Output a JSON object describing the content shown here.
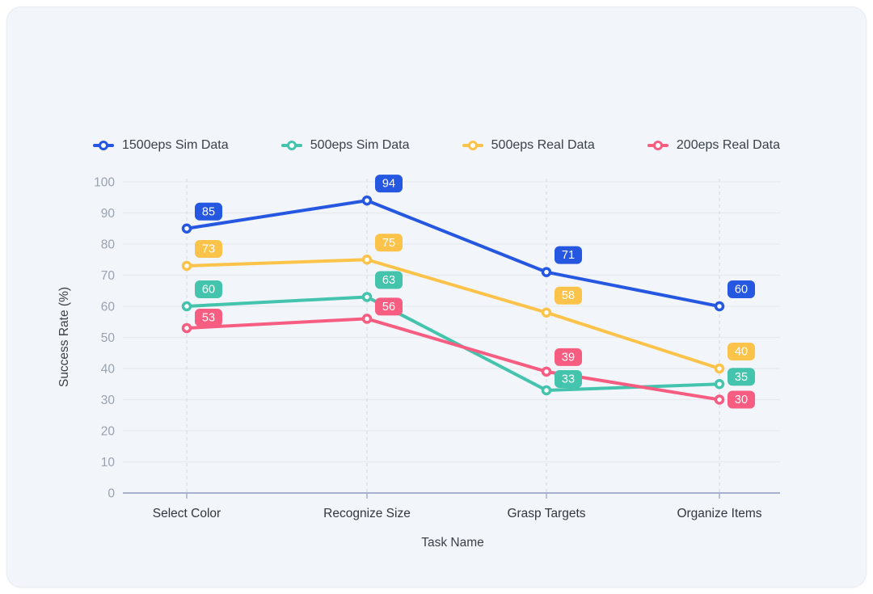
{
  "chart_data": {
    "type": "line",
    "categories": [
      "Select Color",
      "Recognize Size",
      "Grasp Targets",
      "Organize Items"
    ],
    "series": [
      {
        "name": "1500eps Sim Data",
        "color": "#2557e0",
        "values": [
          85,
          94,
          71,
          60
        ]
      },
      {
        "name": "500eps Sim Data",
        "color": "#44c3ad",
        "values": [
          60,
          63,
          33,
          35
        ]
      },
      {
        "name": "500eps Real Data",
        "color": "#fcc34a",
        "values": [
          73,
          75,
          58,
          40
        ]
      },
      {
        "name": "200eps Real Data",
        "color": "#f75d80",
        "values": [
          53,
          56,
          39,
          30
        ]
      }
    ],
    "xlabel": "Task Name",
    "ylabel": "Success Rate (%)",
    "ylim": [
      0,
      100
    ],
    "yticks": [
      0,
      10,
      20,
      30,
      40,
      50,
      60,
      70,
      80,
      90,
      100
    ],
    "grid": {
      "horizontal_solid": true,
      "vertical_dashed": true
    },
    "legend_position": "top",
    "data_labels": true,
    "marker": "hollow-circle",
    "style": {
      "card_background": "#f2f5fa",
      "axis_line": "#a7b1cd",
      "grid_line": "#e7e9ee",
      "dashed_line": "#d8dce5",
      "y_tick_text": "#9aa2ae",
      "x_tick_text": "#31373d",
      "axis_title_text": "#3b4148",
      "legend_text": "#3b4148",
      "data_label_text": "#ffffff"
    }
  }
}
